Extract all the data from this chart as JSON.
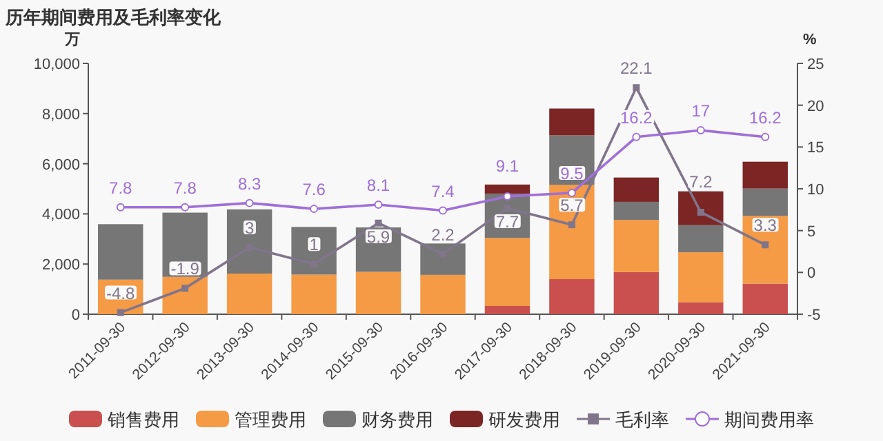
{
  "chart_data": {
    "type": "bar",
    "stacked": true,
    "title": "历年期间费用及毛利率变化",
    "ylabel": "万",
    "y2label": "%",
    "categories": [
      "2011-09-30",
      "2012-09-30",
      "2013-09-30",
      "2014-09-30",
      "2015-09-30",
      "2016-09-30",
      "2017-09-30",
      "2018-09-30",
      "2019-09-30",
      "2020-09-30",
      "2021-09-30"
    ],
    "ylim": [
      0,
      10000
    ],
    "yticks": [
      0,
      {
        "value": 2000,
        "label": "2,000"
      },
      {
        "value": 4000,
        "label": "4,000"
      },
      {
        "value": 6000,
        "label": "6,000"
      },
      {
        "value": 8000,
        "label": "8,000"
      },
      {
        "value": 10000,
        "label": "10,000"
      }
    ],
    "y2lim": [
      -5,
      25
    ],
    "y2ticks": [
      -5,
      0,
      5,
      10,
      15,
      20,
      25
    ],
    "grid": false,
    "legend": "bottom",
    "series": [
      {
        "name": "销售费用",
        "color": "#c9504f",
        "values": [
          null,
          null,
          null,
          null,
          null,
          null,
          330,
          1400,
          1680,
          480,
          1220
        ]
      },
      {
        "name": "管理费用",
        "color": "#f59a45",
        "values": [
          1380,
          1490,
          1620,
          1580,
          1690,
          1570,
          2710,
          3760,
          2080,
          1990,
          2700
        ]
      },
      {
        "name": "财务费用",
        "color": "#767676",
        "values": [
          2210,
          2560,
          2560,
          1900,
          1770,
          1250,
          1770,
          1970,
          720,
          1080,
          1090
        ]
      },
      {
        "name": "研发费用",
        "color": "#7b2525",
        "values": [
          null,
          null,
          null,
          null,
          null,
          null,
          360,
          1070,
          970,
          1350,
          1070
        ]
      },
      {
        "name": "毛利率",
        "type": "line",
        "axis": "y2",
        "marker": "square",
        "data_labels": true,
        "color": "#80758a",
        "values": [
          -4.8,
          -1.9,
          3,
          1,
          5.9,
          2.2,
          7.7,
          5.7,
          22.1,
          7.2,
          3.3
        ]
      },
      {
        "name": "期间费用率",
        "type": "line",
        "axis": "y2",
        "marker": "circle",
        "data_labels": true,
        "color": "#9f6fd8",
        "values": [
          7.8,
          7.8,
          8.3,
          7.6,
          8.1,
          7.4,
          9.1,
          9.5,
          16.2,
          17,
          16.2
        ]
      }
    ]
  }
}
